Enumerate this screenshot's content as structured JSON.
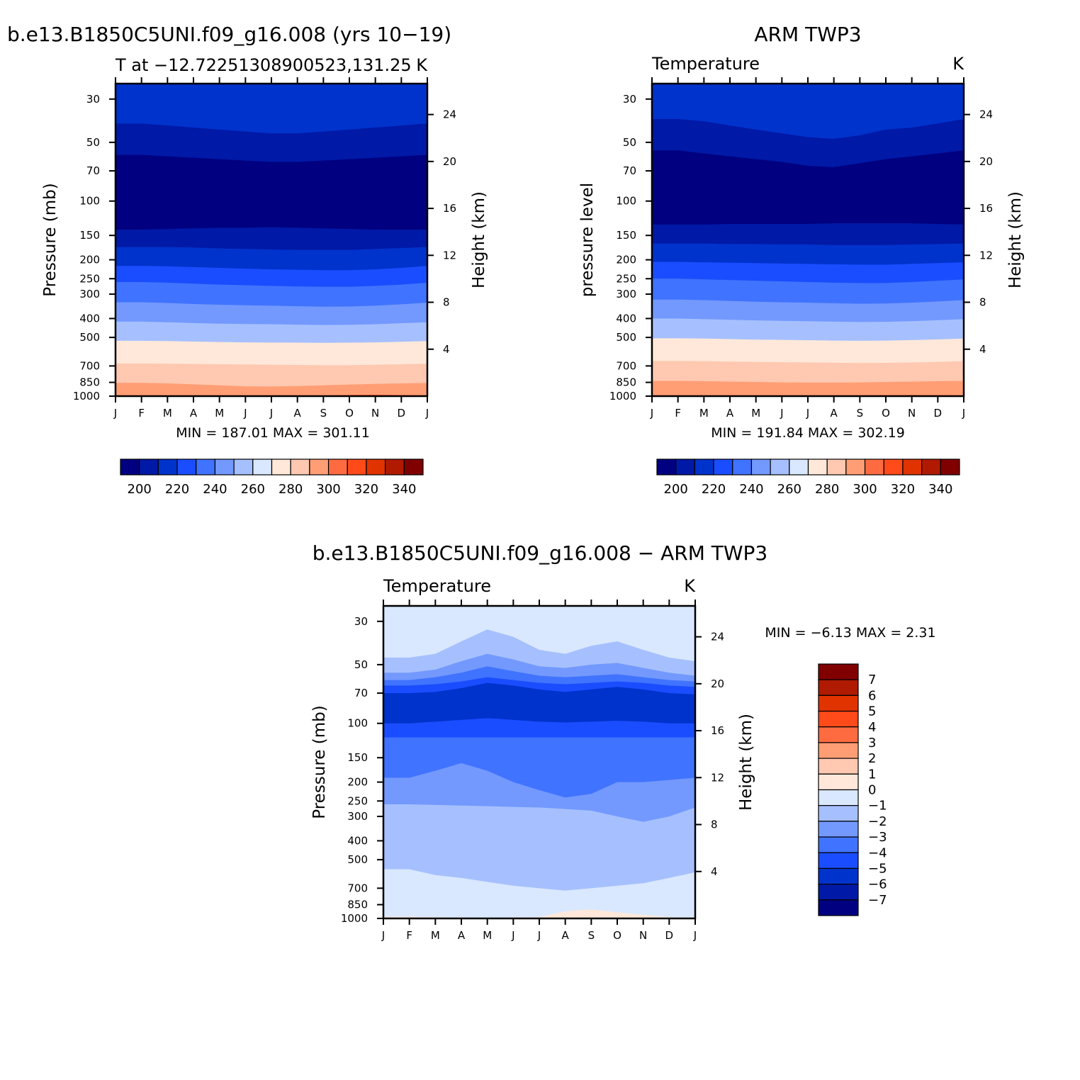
{
  "titles": {
    "top_left": "b.e13.B1850C5UNI.f09_g16.008 (yrs 10−19)",
    "top_right": "ARM TWP3",
    "bottom": "b.e13.B1850C5UNI.f09_g16.008 − ARM TWP3"
  },
  "chart_data": [
    {
      "type": "heatmap",
      "title": "b.e13.B1850C5UNI.f09_g16.008 (yrs 10−19)",
      "subtitle_left": "T at −12.72251308900523,131.25",
      "subtitle_right": "K",
      "xlabel": "",
      "ylabel": "Pressure (mb)",
      "ylabel_right": "Height (km)",
      "x_ticks": [
        "J",
        "F",
        "M",
        "A",
        "M",
        "J",
        "J",
        "A",
        "S",
        "O",
        "N",
        "D",
        "J"
      ],
      "y_ticks": [
        30,
        50,
        70,
        100,
        150,
        200,
        250,
        300,
        400,
        500,
        700,
        850,
        1000
      ],
      "y_ticks_right": [
        24,
        20,
        16,
        12,
        8,
        4
      ],
      "y_scale": "log",
      "min_text": "MIN = 187.01 MAX = 301.11",
      "min": 187.01,
      "max": 301.11,
      "colorbar_levels": [
        200,
        210,
        220,
        230,
        240,
        250,
        260,
        270,
        280,
        290,
        300,
        310,
        320,
        330,
        340
      ],
      "colorbar_labels": [
        "200",
        "220",
        "240",
        "260",
        "280",
        "300",
        "320",
        "340"
      ],
      "colorbar_orientation": "horizontal",
      "colors": [
        "#000080",
        "#0019a6",
        "#0033cc",
        "#1a4dff",
        "#4073ff",
        "#7399ff",
        "#a6c0ff",
        "#d9e8ff",
        "#ffe8d9",
        "#ffc8b0",
        "#ff9e75",
        "#ff6b40",
        "#ff4a1a",
        "#e03300",
        "#b01a00",
        "#800000"
      ],
      "bands": [
        {
          "top": [
            25,
            25,
            25,
            25,
            25,
            25,
            25,
            25,
            25,
            25,
            25,
            25,
            25
          ],
          "color": "#0033cc"
        },
        {
          "top": [
            40,
            40,
            41,
            42,
            43,
            44,
            45,
            45,
            44,
            43,
            42,
            41,
            40
          ],
          "color": "#0019a6"
        },
        {
          "top": [
            58,
            58,
            59,
            60,
            61,
            62,
            63,
            63,
            62,
            61,
            60,
            59,
            58
          ],
          "color": "#000080"
        },
        {
          "top": [
            140,
            140,
            139,
            138,
            137,
            137,
            136,
            137,
            138,
            139,
            140,
            140,
            140
          ],
          "color": "#0019a6"
        },
        {
          "top": [
            172,
            172,
            172,
            173,
            175,
            176,
            177,
            178,
            178,
            178,
            176,
            174,
            172
          ],
          "color": "#0033cc"
        },
        {
          "top": [
            215,
            215,
            216,
            218,
            220,
            222,
            224,
            225,
            226,
            226,
            224,
            220,
            215
          ],
          "color": "#1a4dff"
        },
        {
          "top": [
            260,
            260,
            262,
            265,
            268,
            270,
            272,
            274,
            275,
            275,
            272,
            268,
            262
          ],
          "color": "#4073ff"
        },
        {
          "top": [
            330,
            330,
            333,
            337,
            340,
            342,
            344,
            346,
            348,
            347,
            344,
            338,
            332
          ],
          "color": "#7399ff"
        },
        {
          "top": [
            415,
            415,
            418,
            422,
            425,
            427,
            428,
            430,
            432,
            431,
            428,
            423,
            418
          ],
          "color": "#a6c0ff"
        },
        {
          "top": [
            520,
            520,
            522,
            525,
            528,
            530,
            531,
            532,
            533,
            532,
            530,
            526,
            522
          ],
          "color": "#ffe8d9"
        },
        {
          "top": [
            680,
            680,
            682,
            684,
            686,
            688,
            690,
            692,
            694,
            694,
            690,
            686,
            682
          ],
          "color": "#ffc8b0"
        },
        {
          "top": [
            855,
            855,
            860,
            870,
            880,
            890,
            892,
            888,
            880,
            872,
            866,
            860,
            856
          ],
          "color": "#ff9e75"
        },
        {
          "top": [
            990,
            990,
            990,
            990,
            990,
            990,
            990,
            990,
            990,
            985,
            982,
            986,
            990
          ],
          "color": "#ff6b40"
        }
      ]
    },
    {
      "type": "heatmap",
      "title": "ARM TWP3",
      "subtitle_left": "Temperature",
      "subtitle_right": "K",
      "xlabel": "",
      "ylabel": "pressure level",
      "ylabel_right": "Height (km)",
      "x_ticks": [
        "J",
        "F",
        "M",
        "A",
        "M",
        "J",
        "J",
        "A",
        "S",
        "O",
        "N",
        "D",
        "J"
      ],
      "y_ticks": [
        30,
        50,
        70,
        100,
        150,
        200,
        250,
        300,
        400,
        500,
        700,
        850,
        1000
      ],
      "y_ticks_right": [
        24,
        20,
        16,
        12,
        8,
        4
      ],
      "y_scale": "log",
      "min_text": "MIN = 191.84 MAX = 302.19",
      "min": 191.84,
      "max": 302.19,
      "colorbar_levels": [
        200,
        210,
        220,
        230,
        240,
        250,
        260,
        270,
        280,
        290,
        300,
        310,
        320,
        330,
        340
      ],
      "colorbar_labels": [
        "200",
        "220",
        "240",
        "260",
        "280",
        "300",
        "320",
        "340"
      ],
      "colorbar_orientation": "horizontal",
      "colors": [
        "#000080",
        "#0019a6",
        "#0033cc",
        "#1a4dff",
        "#4073ff",
        "#7399ff",
        "#a6c0ff",
        "#d9e8ff",
        "#ffe8d9",
        "#ffc8b0",
        "#ff9e75",
        "#ff6b40",
        "#ff4a1a",
        "#e03300",
        "#b01a00",
        "#800000"
      ],
      "bands": [
        {
          "top": [
            25,
            25,
            25,
            25,
            25,
            25,
            25,
            25,
            25,
            25,
            25,
            25,
            25
          ],
          "color": "#0033cc"
        },
        {
          "top": [
            38,
            38,
            39,
            41,
            43,
            45,
            47,
            48,
            46,
            43,
            42,
            40,
            38
          ],
          "color": "#0019a6"
        },
        {
          "top": [
            55,
            55,
            57,
            59,
            61,
            63,
            66,
            67,
            64,
            61,
            59,
            57,
            55
          ],
          "color": "#000080"
        },
        {
          "top": [
            132,
            132,
            132,
            131,
            131,
            131,
            131,
            130,
            130,
            130,
            130,
            131,
            132
          ],
          "color": "#0019a6"
        },
        {
          "top": [
            165,
            165,
            165,
            166,
            166,
            167,
            167,
            168,
            168,
            168,
            167,
            166,
            165
          ],
          "color": "#0033cc"
        },
        {
          "top": [
            205,
            205,
            206,
            207,
            208,
            209,
            210,
            211,
            212,
            212,
            210,
            208,
            206
          ],
          "color": "#1a4dff"
        },
        {
          "top": [
            250,
            250,
            252,
            254,
            256,
            258,
            260,
            262,
            263,
            263,
            260,
            256,
            252
          ],
          "color": "#4073ff"
        },
        {
          "top": [
            320,
            320,
            322,
            325,
            328,
            330,
            332,
            334,
            336,
            335,
            332,
            327,
            322
          ],
          "color": "#7399ff"
        },
        {
          "top": [
            400,
            400,
            403,
            406,
            409,
            411,
            413,
            415,
            417,
            416,
            413,
            408,
            403
          ],
          "color": "#a6c0ff"
        },
        {
          "top": [
            505,
            505,
            507,
            510,
            513,
            515,
            517,
            519,
            520,
            519,
            516,
            512,
            507
          ],
          "color": "#ffe8d9"
        },
        {
          "top": [
            660,
            660,
            662,
            665,
            668,
            670,
            672,
            674,
            676,
            675,
            672,
            667,
            662
          ],
          "color": "#ffc8b0"
        },
        {
          "top": [
            835,
            835,
            838,
            842,
            846,
            850,
            852,
            852,
            850,
            846,
            842,
            838,
            835
          ],
          "color": "#ff9e75"
        },
        {
          "top": [
            990,
            990,
            990,
            990,
            990,
            990,
            990,
            990,
            990,
            988,
            985,
            986,
            990
          ],
          "color": "#ff6b40"
        }
      ]
    },
    {
      "type": "heatmap",
      "title": "b.e13.B1850C5UNI.f09_g16.008 − ARM TWP3",
      "subtitle_left": "Temperature",
      "subtitle_right": "K",
      "xlabel": "",
      "ylabel": "Pressure (mb)",
      "ylabel_right": "Height (km)",
      "x_ticks": [
        "J",
        "F",
        "M",
        "A",
        "M",
        "J",
        "J",
        "A",
        "S",
        "O",
        "N",
        "D",
        "J"
      ],
      "y_ticks": [
        30,
        50,
        70,
        100,
        150,
        200,
        250,
        300,
        400,
        500,
        700,
        850,
        1000
      ],
      "y_ticks_right": [
        24,
        20,
        16,
        12,
        8,
        4
      ],
      "y_scale": "log",
      "min_text": "MIN =   −6.13 MAX =    2.31",
      "min": -6.13,
      "max": 2.31,
      "colorbar_levels": [
        -7,
        -6,
        -5,
        -4,
        -3,
        -2,
        -1,
        0,
        1,
        2,
        3,
        4,
        5,
        6,
        7
      ],
      "colorbar_labels": [
        "7",
        "6",
        "5",
        "4",
        "3",
        "2",
        "1",
        "0",
        "−1",
        "−2",
        "−3",
        "−4",
        "−5",
        "−6",
        "−7"
      ],
      "colorbar_orientation": "vertical",
      "colors": [
        "#000080",
        "#0019a6",
        "#0033cc",
        "#1a4dff",
        "#4073ff",
        "#7399ff",
        "#a6c0ff",
        "#d9e8ff",
        "#ffe8d9",
        "#ffc8b0",
        "#ff9e75",
        "#ff6b40",
        "#ff4a1a",
        "#e03300",
        "#b01a00",
        "#800000"
      ],
      "bands": [
        {
          "top": [
            25,
            25,
            25,
            25,
            25,
            25,
            25,
            25,
            25,
            25,
            25,
            25,
            25
          ],
          "color": "#d9e8ff"
        },
        {
          "top": [
            46,
            46,
            44,
            38,
            33,
            36,
            42,
            44,
            40,
            38,
            42,
            46,
            48
          ],
          "color": "#a6c0ff"
        },
        {
          "top": [
            55,
            55,
            53,
            48,
            44,
            47,
            51,
            52,
            50,
            49,
            52,
            55,
            57
          ],
          "color": "#7399ff"
        },
        {
          "top": [
            60,
            60,
            58,
            55,
            51,
            54,
            57,
            58,
            57,
            56,
            58,
            60,
            61
          ],
          "color": "#4073ff"
        },
        {
          "top": [
            64,
            64,
            63,
            61,
            58,
            60,
            62,
            63,
            62,
            61,
            62,
            64,
            65
          ],
          "color": "#1a4dff"
        },
        {
          "top": [
            70,
            70,
            69,
            66,
            62,
            64,
            67,
            69,
            67,
            65,
            67,
            70,
            71
          ],
          "color": "#0033cc"
        },
        {
          "top": [
            100,
            100,
            98,
            96,
            94,
            96,
            98,
            99,
            98,
            97,
            98,
            100,
            100
          ],
          "color": "#1a4dff"
        },
        {
          "top": [
            118,
            118,
            118,
            118,
            118,
            118,
            118,
            118,
            118,
            118,
            118,
            118,
            118
          ],
          "color": "#4073ff"
        },
        {
          "top": [
            190,
            190,
            175,
            160,
            175,
            200,
            220,
            240,
            230,
            200,
            200,
            195,
            190
          ],
          "color": "#7399ff"
        },
        {
          "top": [
            260,
            260,
            262,
            264,
            266,
            268,
            270,
            275,
            280,
            300,
            320,
            300,
            270
          ],
          "color": "#a6c0ff"
        },
        {
          "top": [
            560,
            560,
            600,
            620,
            650,
            680,
            700,
            720,
            700,
            680,
            660,
            620,
            580
          ],
          "color": "#d9e8ff"
        },
        {
          "top": [
            980,
            980,
            985,
            990,
            995,
            990,
            985,
            920,
            900,
            930,
            960,
            985,
            990
          ],
          "color": "#ffe8d9"
        }
      ]
    }
  ]
}
